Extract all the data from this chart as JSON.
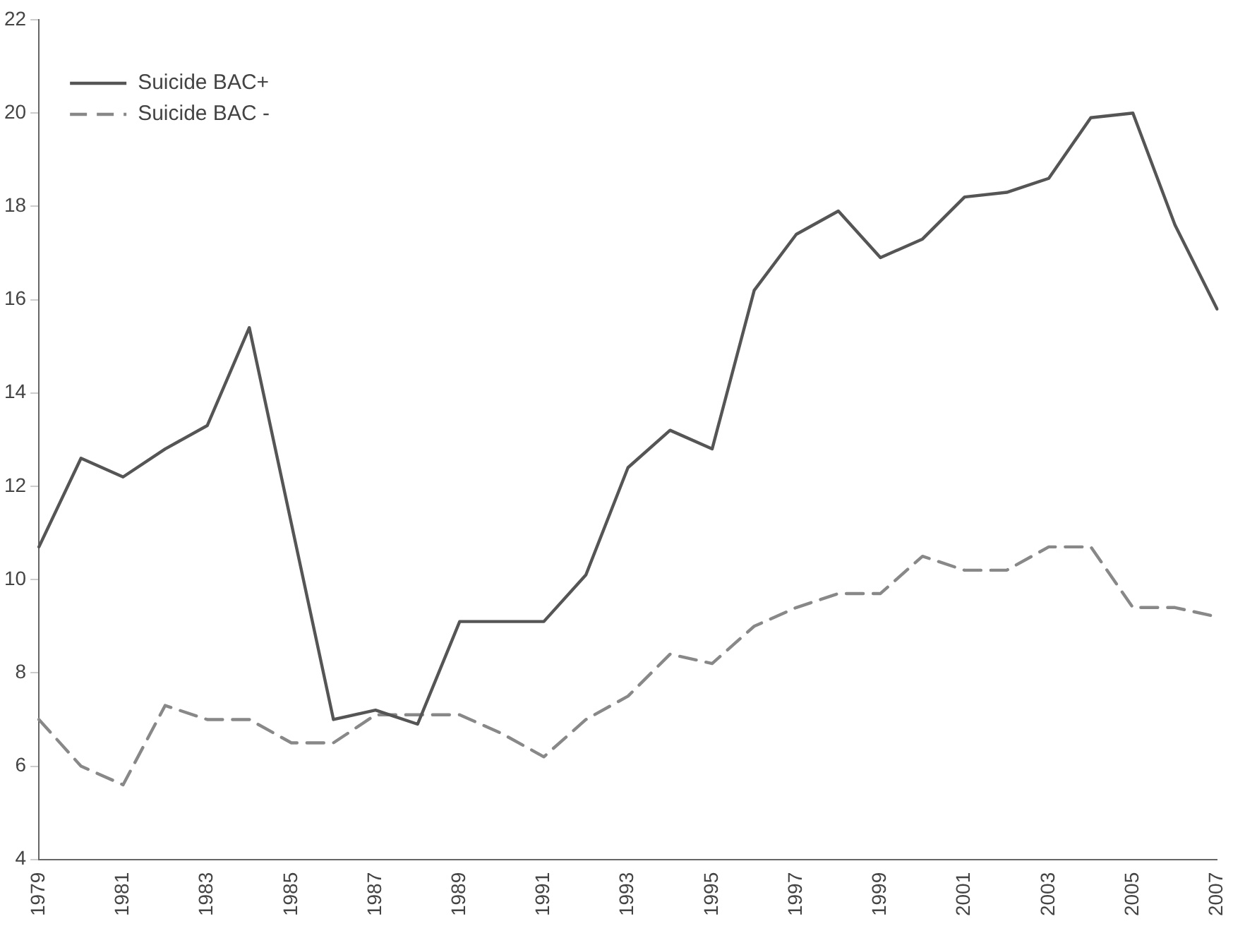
{
  "chart_data": {
    "type": "line",
    "categories": [
      "1979",
      null,
      "1981",
      null,
      "1983",
      null,
      "1985",
      null,
      "1987",
      null,
      "1989",
      null,
      "1991",
      null,
      "1993",
      null,
      "1995",
      null,
      "1997",
      null,
      "1999",
      null,
      "2001",
      null,
      "2003",
      null,
      "2005",
      null,
      "2007"
    ],
    "series": [
      {
        "name": "Suicide BAC+",
        "color": "#555555",
        "line_style": "solid",
        "values": [
          10.7,
          12.6,
          12.2,
          12.8,
          13.3,
          15.4,
          11.2,
          7.0,
          7.2,
          6.9,
          9.1,
          9.1,
          9.1,
          10.1,
          12.4,
          13.2,
          12.8,
          16.2,
          17.4,
          17.9,
          16.9,
          17.3,
          18.2,
          18.3,
          18.6,
          19.9,
          20.0,
          17.6,
          15.8
        ]
      },
      {
        "name": "Suicide BAC -",
        "color": "#888888",
        "line_style": "dashed",
        "values": [
          7.0,
          6.0,
          5.6,
          7.3,
          7.0,
          7.0,
          6.5,
          6.5,
          7.1,
          7.1,
          7.1,
          6.7,
          6.2,
          7.0,
          7.5,
          8.4,
          8.2,
          9.0,
          9.4,
          9.7,
          9.7,
          10.5,
          10.2,
          10.2,
          10.7,
          10.7,
          9.4,
          9.4,
          9.2
        ]
      }
    ],
    "ylim": [
      4,
      22
    ],
    "yticks": [
      4,
      6,
      8,
      10,
      12,
      14,
      16,
      18,
      20,
      22
    ],
    "grid": false,
    "legend": "top left",
    "marker": "none"
  }
}
